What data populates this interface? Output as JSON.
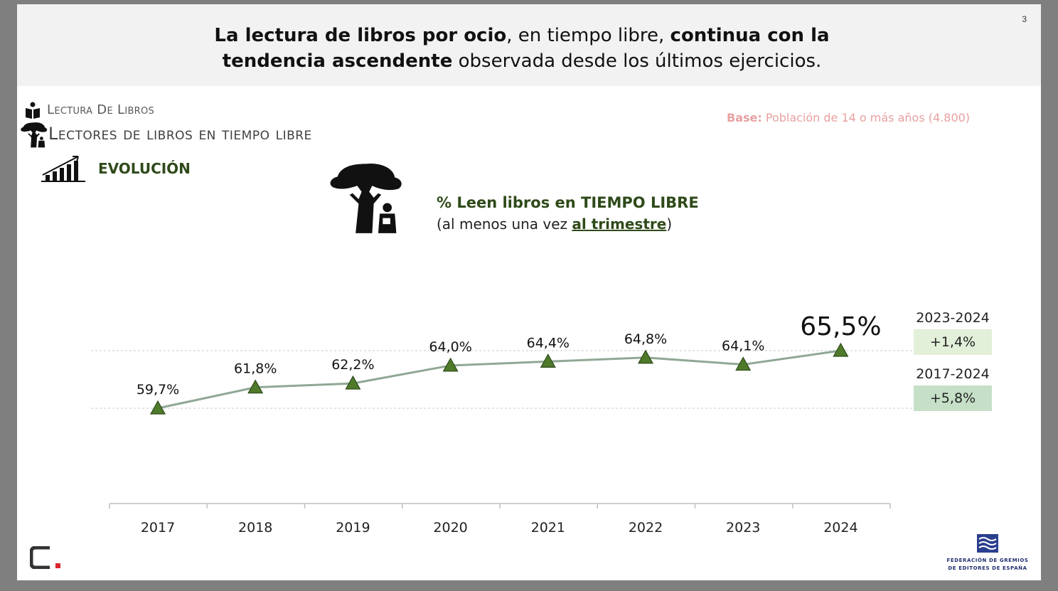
{
  "slide_number": "3",
  "headline": {
    "line1": [
      {
        "text": "La lectura de libros por ocio",
        "bold": true
      },
      {
        "text": ", en tiempo libre, ",
        "bold": false
      },
      {
        "text": "continua con la",
        "bold": true
      }
    ],
    "line2": [
      {
        "text": "tendencia ascendente",
        "bold": true
      },
      {
        "text": " observada desde los últimos ejercicios.",
        "bold": false
      }
    ]
  },
  "section": "Lectura De Libros",
  "subsection": "Lectores de libros en tiempo libre",
  "evolution_label": "EVOLUCIÓN",
  "base": {
    "label": "Base:",
    "text": " Población de 14 o más años (4.800)"
  },
  "metric": {
    "title": "% Leen libros en TIEMPO LIBRE",
    "subtitle_pre": "(al menos una vez ",
    "subtitle_em": "al trimestre",
    "subtitle_post": ")"
  },
  "colors": {
    "line": "#8fa895",
    "marker": "#4e7a2a",
    "marker_edge": "#2f4a1a",
    "accent_green": "#2f4a1a",
    "delta_1_bg": "#e2efd9",
    "delta_2_bg": "#c6e0c8"
  },
  "chart_data": {
    "type": "line",
    "title": "% Leen libros en TIEMPO LIBRE",
    "categories": [
      "2017",
      "2018",
      "2019",
      "2020",
      "2021",
      "2022",
      "2023",
      "2024"
    ],
    "series": [
      {
        "values": [
          59.7,
          61.8,
          62.2,
          64.0,
          64.4,
          64.8,
          64.1,
          65.5
        ],
        "labels": [
          "59,7%",
          "61,8%",
          "62,2%",
          "64,0%",
          "64,4%",
          "64,8%",
          "64,1%",
          "65,5%"
        ]
      }
    ],
    "reference_lines": [
      65.5,
      59.7
    ],
    "marker": "triangle",
    "grid": false,
    "legend": "none"
  },
  "deltas": [
    {
      "period": "2023-2024",
      "value": "+1,4%"
    },
    {
      "period": "2017-2024",
      "value": "+5,8%"
    }
  ],
  "icons": {
    "section": "reader-icon",
    "subsection": "tree-reader-icon",
    "evolution": "growth-chart-icon",
    "hero": "tree-reader-icon",
    "logo_left": "brand-c-icon",
    "logo_right": "federation-logo-icon"
  },
  "logo_right_text": [
    "FEDERACIÓN DE GREMIOS",
    "DE EDITORES DE ESPAÑA"
  ]
}
